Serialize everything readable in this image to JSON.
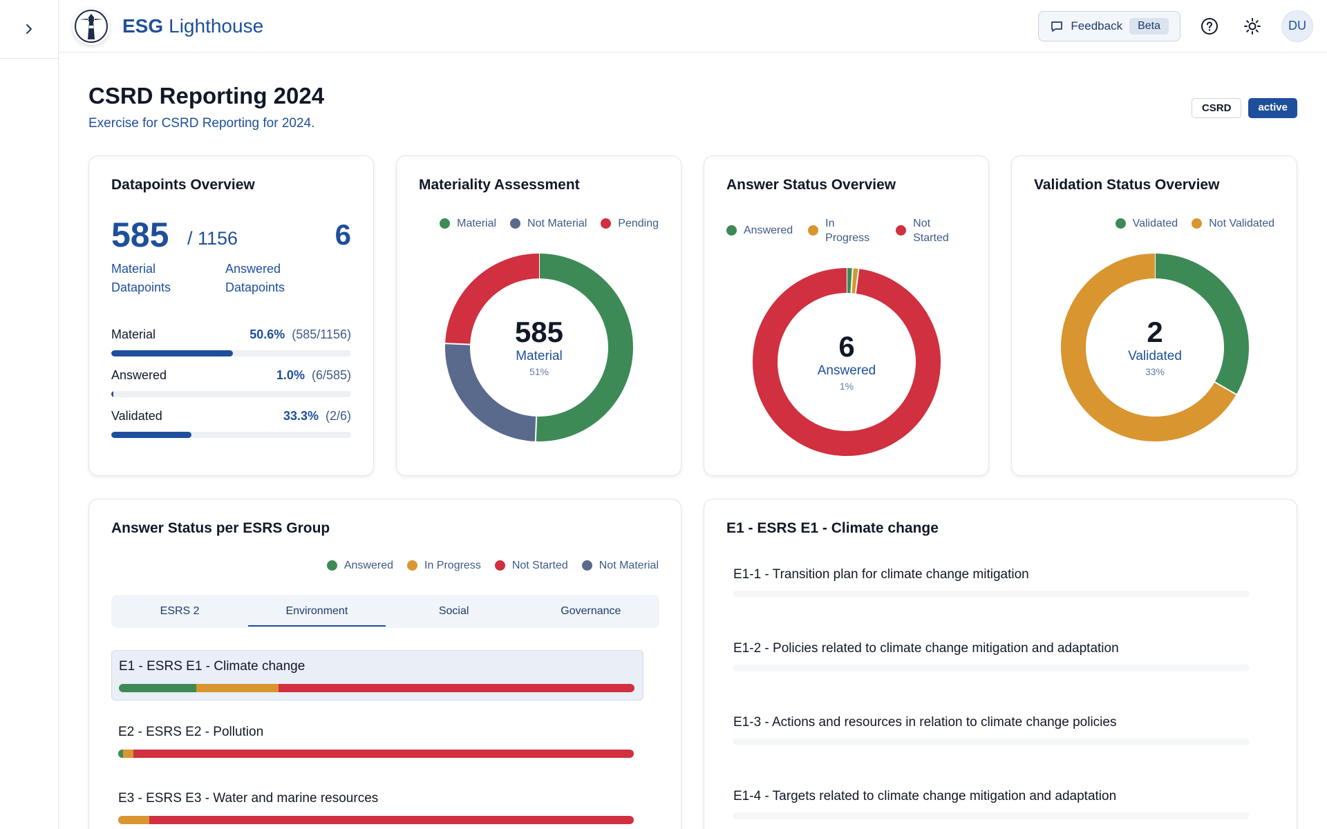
{
  "app": {
    "brand_part1": "ESG",
    "brand_part2": "Lighthouse"
  },
  "header": {
    "feedback_label": "Feedback",
    "beta_label": "Beta",
    "avatar_initials": "DU"
  },
  "page": {
    "title": "CSRD Reporting 2024",
    "subtitle": "Exercise for CSRD Reporting for 2024.",
    "badge_framework": "CSRD",
    "badge_status": "active"
  },
  "datapoints": {
    "title": "Datapoints Overview",
    "material_count": "585",
    "total": "/ 1156",
    "answered_count": "6",
    "material_label": "Material Datapoints",
    "answered_label": "Answered Datapoints",
    "rows": [
      {
        "label": "Material",
        "pct": "50.6%",
        "frac": "(585/1156)",
        "value": 0.506
      },
      {
        "label": "Answered",
        "pct": "1.0%",
        "frac": "(6/585)",
        "value": 0.01
      },
      {
        "label": "Validated",
        "pct": "33.3%",
        "frac": "(2/6)",
        "value": 0.333
      }
    ]
  },
  "materiality": {
    "title": "Materiality Assessment",
    "legend": [
      "Material",
      "Not Material",
      "Pending"
    ],
    "center_value": "585",
    "center_label": "Material",
    "center_pct": "51%"
  },
  "answer_status": {
    "title": "Answer Status Overview",
    "legend": [
      "Answered",
      "In Progress",
      "Not Started"
    ],
    "center_value": "6",
    "center_label": "Answered",
    "center_pct": "1%"
  },
  "validation_status": {
    "title": "Validation Status Overview",
    "legend": [
      "Validated",
      "Not Validated"
    ],
    "center_value": "2",
    "center_label": "Validated",
    "center_pct": "33%"
  },
  "esrs_groups": {
    "title": "Answer Status per ESRS Group",
    "legend": [
      "Answered",
      "In Progress",
      "Not Started",
      "Not Material"
    ],
    "tabs": [
      "ESRS 2",
      "Environment",
      "Social",
      "Governance"
    ],
    "active_tab": "Environment",
    "groups": [
      {
        "label": "E1 - ESRS E1 - Climate change"
      },
      {
        "label": "E2 - ESRS E2 - Pollution"
      },
      {
        "label": "E3 - ESRS E3 - Water and marine resources"
      }
    ]
  },
  "disclosures": {
    "title": "E1 - ESRS E1 - Climate change",
    "items": [
      "E1-1 - Transition plan for climate change mitigation",
      "E1-2 - Policies related to climate change mitigation and adaptation",
      "E1-3 - Actions and resources in relation to climate change policies",
      "E1-4 - Targets related to climate change mitigation and adaptation"
    ]
  },
  "colors": {
    "brand": "#1e4f9c",
    "green": "#3d8a57",
    "slate": "#5a6a8c",
    "red": "#d0303f",
    "orange": "#d99530"
  },
  "chart_data": [
    {
      "type": "pie",
      "labels": [
        "Material",
        "Not Material",
        "Pending"
      ],
      "values": [
        585,
        290,
        281
      ]
    },
    {
      "type": "pie",
      "labels": [
        "Answered",
        "In Progress",
        "Not Started"
      ],
      "values": [
        6,
        6,
        573
      ]
    },
    {
      "type": "pie",
      "labels": [
        "Validated",
        "Not Validated"
      ],
      "values": [
        2,
        4
      ]
    },
    {
      "type": "bar",
      "stacked": true,
      "categories": [
        "E1 - ESRS E1 - Climate change",
        "E2 - ESRS E2 - Pollution",
        "E3 - ESRS E3 - Water and marine resources"
      ],
      "series": [
        {
          "name": "Answered",
          "values": [
            15,
            1,
            0
          ]
        },
        {
          "name": "In Progress",
          "values": [
            16,
            2,
            6
          ]
        },
        {
          "name": "Not Started",
          "values": [
            69,
            97,
            94
          ]
        },
        {
          "name": "Not Material",
          "values": [
            0,
            0,
            0
          ]
        }
      ]
    }
  ]
}
